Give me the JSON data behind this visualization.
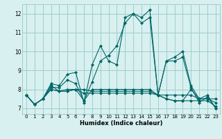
{
  "xlabel": "Humidex (Indice chaleur)",
  "bg_color": "#d8f0f0",
  "grid_color": "#a0cccc",
  "line_color": "#006666",
  "xlim": [
    -0.5,
    23.5
  ],
  "ylim": [
    6.7,
    12.5
  ],
  "yticks": [
    7,
    8,
    9,
    10,
    11,
    12
  ],
  "xticks": [
    0,
    1,
    2,
    3,
    4,
    5,
    6,
    7,
    8,
    9,
    10,
    11,
    12,
    13,
    14,
    15,
    16,
    17,
    18,
    19,
    20,
    21,
    22,
    23
  ],
  "series": [
    [
      7.7,
      7.2,
      7.5,
      8.3,
      8.2,
      8.8,
      8.9,
      7.3,
      9.3,
      10.3,
      9.5,
      9.3,
      11.8,
      12.0,
      11.8,
      12.2,
      7.7,
      9.5,
      9.7,
      10.0,
      8.2,
      7.5,
      7.5,
      7.3
    ],
    [
      7.7,
      7.2,
      7.5,
      8.1,
      8.1,
      8.5,
      8.3,
      7.4,
      8.4,
      9.5,
      9.8,
      10.3,
      11.5,
      12.0,
      11.5,
      11.8,
      7.7,
      9.5,
      9.5,
      9.7,
      8.1,
      7.3,
      7.6,
      7.0
    ],
    [
      7.7,
      7.2,
      7.5,
      8.2,
      7.9,
      8.0,
      8.0,
      7.8,
      7.8,
      7.8,
      7.8,
      7.8,
      7.8,
      7.8,
      7.8,
      7.8,
      7.7,
      7.7,
      7.7,
      7.7,
      7.7,
      7.5,
      7.5,
      7.5
    ],
    [
      7.7,
      7.2,
      7.5,
      8.0,
      7.9,
      7.9,
      8.0,
      8.0,
      7.9,
      7.9,
      7.9,
      7.9,
      7.9,
      7.9,
      7.9,
      7.9,
      7.7,
      7.5,
      7.4,
      7.4,
      7.4,
      7.4,
      7.4,
      7.1
    ],
    [
      7.7,
      7.2,
      7.5,
      8.0,
      7.9,
      7.9,
      8.0,
      7.4,
      8.0,
      8.0,
      8.0,
      8.0,
      8.0,
      8.0,
      8.0,
      8.0,
      7.7,
      7.5,
      7.4,
      7.4,
      8.0,
      7.5,
      7.7,
      7.0
    ]
  ]
}
